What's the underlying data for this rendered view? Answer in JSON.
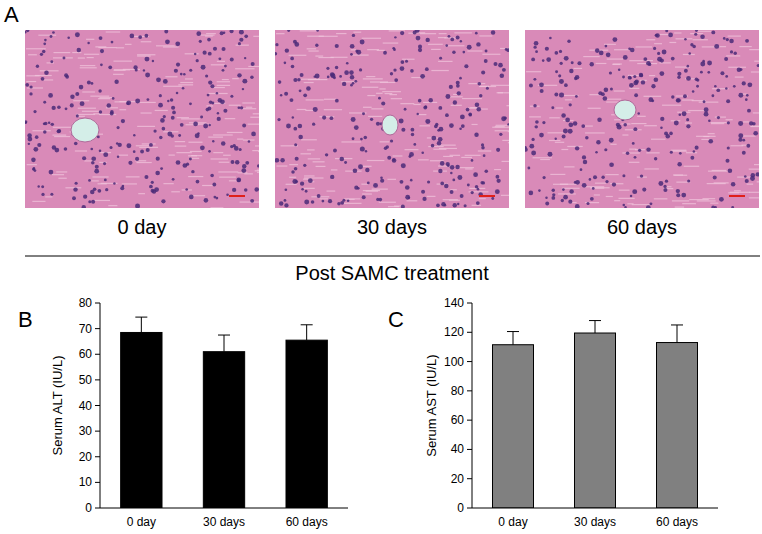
{
  "figure": {
    "panel_labels": [
      "A",
      "B",
      "C"
    ],
    "images": {
      "captions": [
        "0 day",
        "30 days",
        "60 days"
      ],
      "group_label": "Post SAMC treatment"
    }
  },
  "chart_data": [
    {
      "type": "bar",
      "y_label": "Serum ALT (IU/L)",
      "categories": [
        "0 day",
        "30 days",
        "60 days"
      ],
      "values": [
        68.5,
        61,
        65.5
      ],
      "errors": [
        6,
        6.5,
        6
      ],
      "color": "#000000",
      "ylim": [
        0,
        80
      ],
      "yticks": [
        0,
        10,
        20,
        30,
        40,
        50,
        60,
        70,
        80
      ],
      "grid": false
    },
    {
      "type": "bar",
      "y_label": "Serum AST (IU/L)",
      "categories": [
        "0 day",
        "30 days",
        "60 days"
      ],
      "values": [
        111.5,
        119.5,
        113
      ],
      "errors": [
        9,
        8.5,
        12
      ],
      "color": "#808080",
      "ylim": [
        0,
        140
      ],
      "yticks": [
        0,
        20,
        40,
        60,
        80,
        100,
        120,
        140
      ],
      "grid": false
    }
  ]
}
